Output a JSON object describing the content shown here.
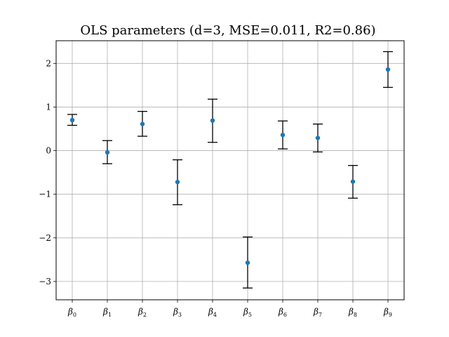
{
  "chart_data": {
    "type": "scatter",
    "title": "OLS parameters (d=3, MSE=0.011, R2=0.86)",
    "xlabel": "",
    "ylabel": "",
    "categories": [
      "β0",
      "β1",
      "β2",
      "β3",
      "β4",
      "β5",
      "β6",
      "β7",
      "β8",
      "β9"
    ],
    "category_symbol": "β",
    "category_subscripts": [
      "0",
      "1",
      "2",
      "3",
      "4",
      "5",
      "6",
      "7",
      "8",
      "9"
    ],
    "values": [
      0.7,
      -0.04,
      0.61,
      -0.72,
      0.69,
      -2.57,
      0.36,
      0.29,
      -0.71,
      1.86
    ],
    "error_lower": [
      0.58,
      -0.3,
      0.33,
      -1.24,
      0.19,
      -3.15,
      0.04,
      -0.03,
      -1.09,
      1.45
    ],
    "error_upper": [
      0.83,
      0.23,
      0.9,
      -0.21,
      1.18,
      -1.98,
      0.68,
      0.61,
      -0.34,
      2.27
    ],
    "ylim": [
      -3.42,
      2.52
    ],
    "yticks": [
      -3,
      -2,
      -1,
      0,
      1,
      2
    ],
    "ytick_labels": [
      "−3",
      "−2",
      "−1",
      "0",
      "1",
      "2"
    ],
    "grid": true,
    "marker_color": "#1f77b4",
    "errorbar_color": "#000000",
    "grid_color": "#b0b0b0"
  }
}
